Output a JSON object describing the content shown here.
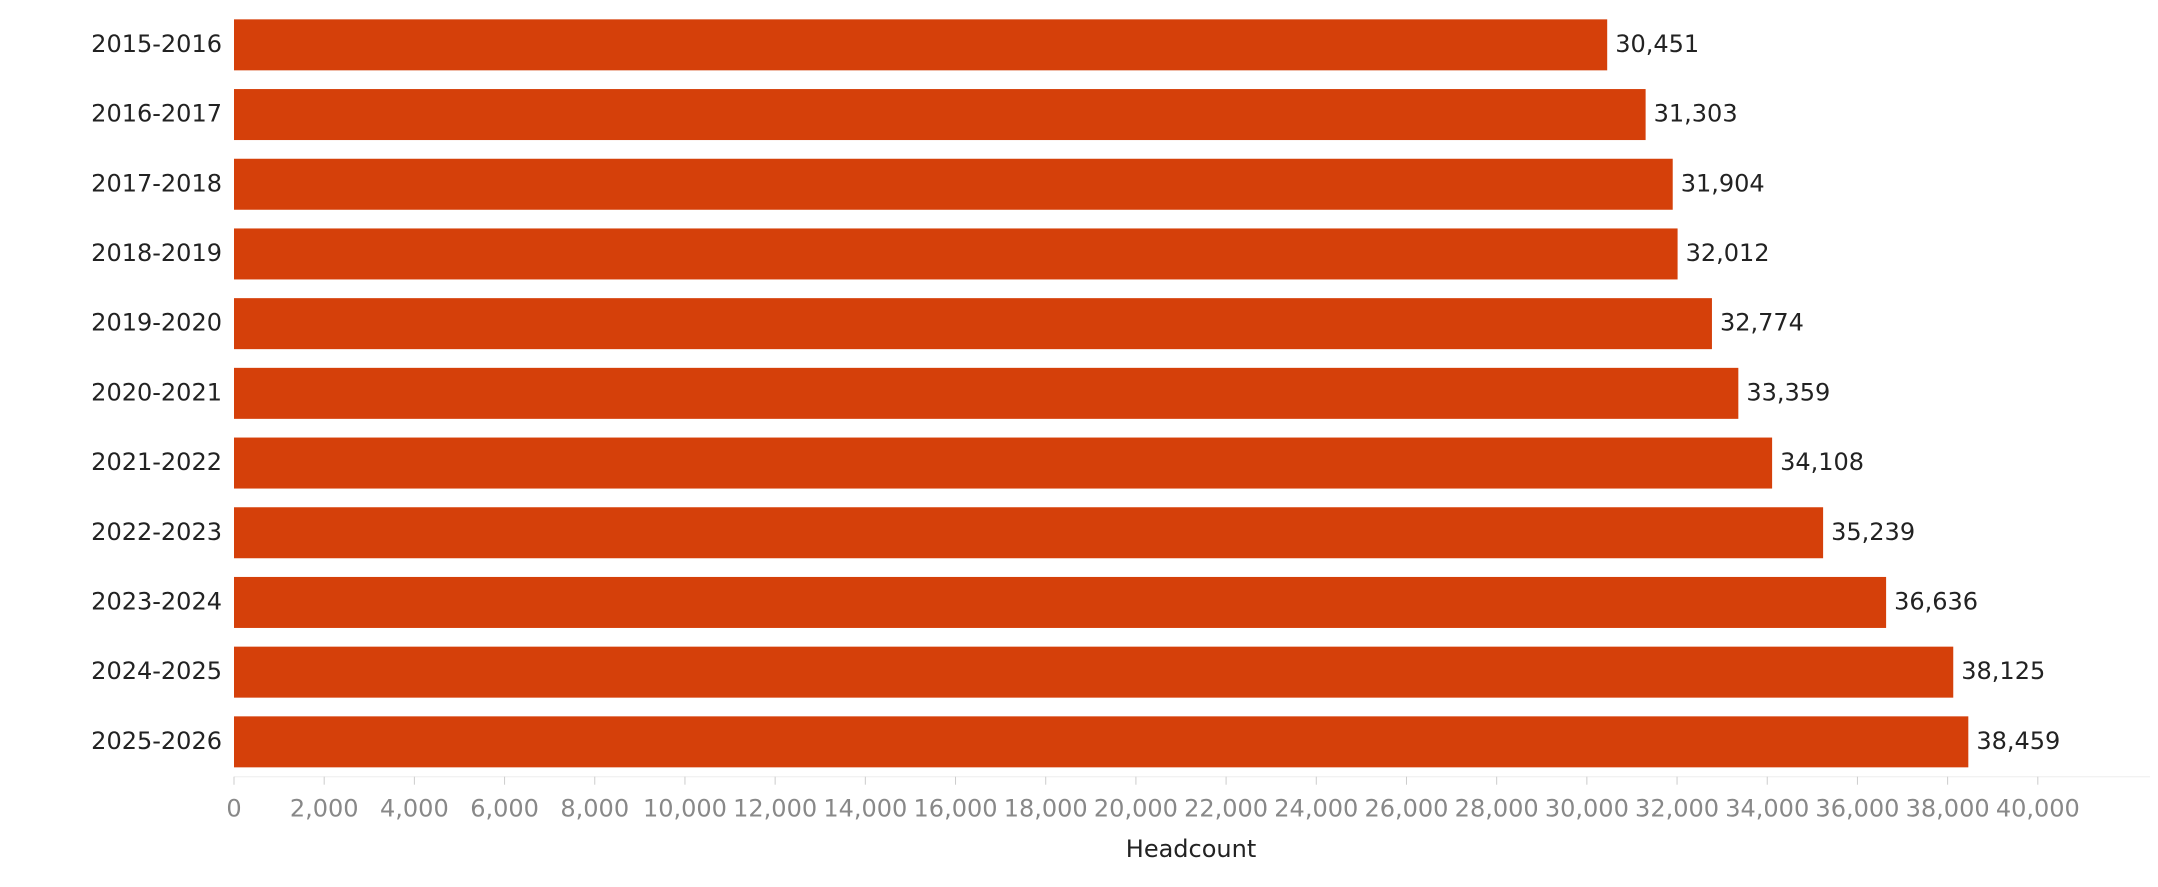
{
  "chart_data": {
    "type": "barh",
    "x_label": "Headcount",
    "categories": [
      "2015-2016",
      "2016-2017",
      "2017-2018",
      "2018-2019",
      "2019-2020",
      "2020-2021",
      "2021-2022",
      "2022-2023",
      "2023-2024",
      "2024-2025",
      "2025-2026"
    ],
    "values": [
      30451,
      31303,
      31904,
      32012,
      32774,
      33359,
      34108,
      35239,
      36636,
      38125,
      38459
    ],
    "value_labels": [
      "30,451",
      "31,303",
      "31,904",
      "32,012",
      "32,774",
      "33,359",
      "34,108",
      "35,239",
      "36,636",
      "38,125",
      "38,459"
    ],
    "color": "#d5400a",
    "xlim": [
      0,
      42000
    ],
    "xticks": [
      0,
      {
        "value": 2000,
        "label": "2,000"
      },
      {
        "value": 4000,
        "label": "4,000"
      },
      {
        "value": 6000,
        "label": "6,000"
      },
      {
        "value": 8000,
        "label": "8,000"
      },
      {
        "value": 10000,
        "label": "10,000"
      },
      {
        "value": 12000,
        "label": "12,000"
      },
      {
        "value": 14000,
        "label": "14,000"
      },
      {
        "value": 16000,
        "label": "16,000"
      },
      {
        "value": 18000,
        "label": "18,000"
      },
      {
        "value": 20000,
        "label": "20,000"
      },
      {
        "value": 22000,
        "label": "22,000"
      },
      {
        "value": 24000,
        "label": "24,000"
      },
      {
        "value": 26000,
        "label": "26,000"
      },
      {
        "value": 28000,
        "label": "28,000"
      },
      {
        "value": 30000,
        "label": "30,000"
      },
      {
        "value": 32000,
        "label": "32,000"
      },
      {
        "value": 34000,
        "label": "34,000"
      },
      {
        "value": 36000,
        "label": "36,000"
      },
      {
        "value": 38000,
        "label": "38,000"
      },
      {
        "value": 40000,
        "label": "40,000"
      }
    ]
  }
}
